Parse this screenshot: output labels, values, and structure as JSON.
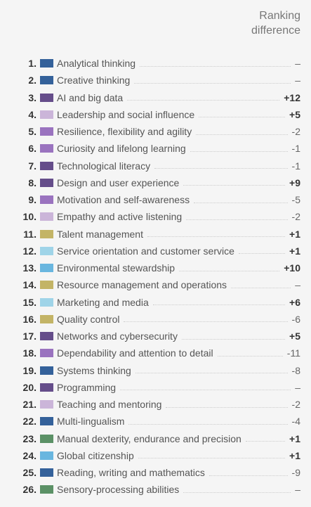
{
  "header": {
    "title": "Ranking difference"
  },
  "rows": [
    {
      "rank": "1.",
      "color": "#34619a",
      "label": "Analytical thinking",
      "difference": "–"
    },
    {
      "rank": "2.",
      "color": "#34619a",
      "label": "Creative thinking",
      "difference": "–"
    },
    {
      "rank": "3.",
      "color": "#654d8a",
      "label": "AI and big data",
      "difference": "+12"
    },
    {
      "rank": "4.",
      "color": "#cbb5d9",
      "label": "Leadership and social influence",
      "difference": "+5"
    },
    {
      "rank": "5.",
      "color": "#9a73bf",
      "label": "Resilience, flexibility and agility",
      "difference": "-2"
    },
    {
      "rank": "6.",
      "color": "#9a73bf",
      "label": "Curiosity and lifelong learning",
      "difference": "-1"
    },
    {
      "rank": "7.",
      "color": "#654d8a",
      "label": "Technological literacy",
      "difference": "-1"
    },
    {
      "rank": "8.",
      "color": "#654d8a",
      "label": "Design and user experience",
      "difference": "+9"
    },
    {
      "rank": "9.",
      "color": "#9a73bf",
      "label": "Motivation and self-awareness",
      "difference": "-5"
    },
    {
      "rank": "10.",
      "color": "#cbb5d9",
      "label": "Empathy and active listening",
      "difference": "-2"
    },
    {
      "rank": "11.",
      "color": "#c3b466",
      "label": "Talent management",
      "difference": "+1"
    },
    {
      "rank": "12.",
      "color": "#9fd4e8",
      "label": "Service orientation and customer service",
      "difference": "+1"
    },
    {
      "rank": "13.",
      "color": "#69b6df",
      "label": "Environmental stewardship",
      "difference": "+10"
    },
    {
      "rank": "14.",
      "color": "#c3b466",
      "label": "Resource management and operations",
      "difference": "–"
    },
    {
      "rank": "15.",
      "color": "#9fd4e8",
      "label": "Marketing and media",
      "difference": "+6"
    },
    {
      "rank": "16.",
      "color": "#c3b466",
      "label": "Quality control",
      "difference": "-6"
    },
    {
      "rank": "17.",
      "color": "#654d8a",
      "label": "Networks and cybersecurity",
      "difference": "+5"
    },
    {
      "rank": "18.",
      "color": "#9a73bf",
      "label": "Dependability and attention to detail",
      "difference": "-11"
    },
    {
      "rank": "19.",
      "color": "#34619a",
      "label": "Systems thinking",
      "difference": "-8"
    },
    {
      "rank": "20.",
      "color": "#654d8a",
      "label": "Programming",
      "difference": "–"
    },
    {
      "rank": "21.",
      "color": "#cbb5d9",
      "label": "Teaching and mentoring",
      "difference": "-2"
    },
    {
      "rank": "22.",
      "color": "#34619a",
      "label": "Multi-lingualism",
      "difference": "-4"
    },
    {
      "rank": "23.",
      "color": "#5b9166",
      "label": "Manual dexterity, endurance and precision",
      "difference": "+1"
    },
    {
      "rank": "24.",
      "color": "#69b6df",
      "label": "Global citizenship",
      "difference": "+1"
    },
    {
      "rank": "25.",
      "color": "#34619a",
      "label": "Reading, writing and mathematics",
      "difference": "-9"
    },
    {
      "rank": "26.",
      "color": "#5b9166",
      "label": "Sensory-processing abilities",
      "difference": "–"
    }
  ]
}
